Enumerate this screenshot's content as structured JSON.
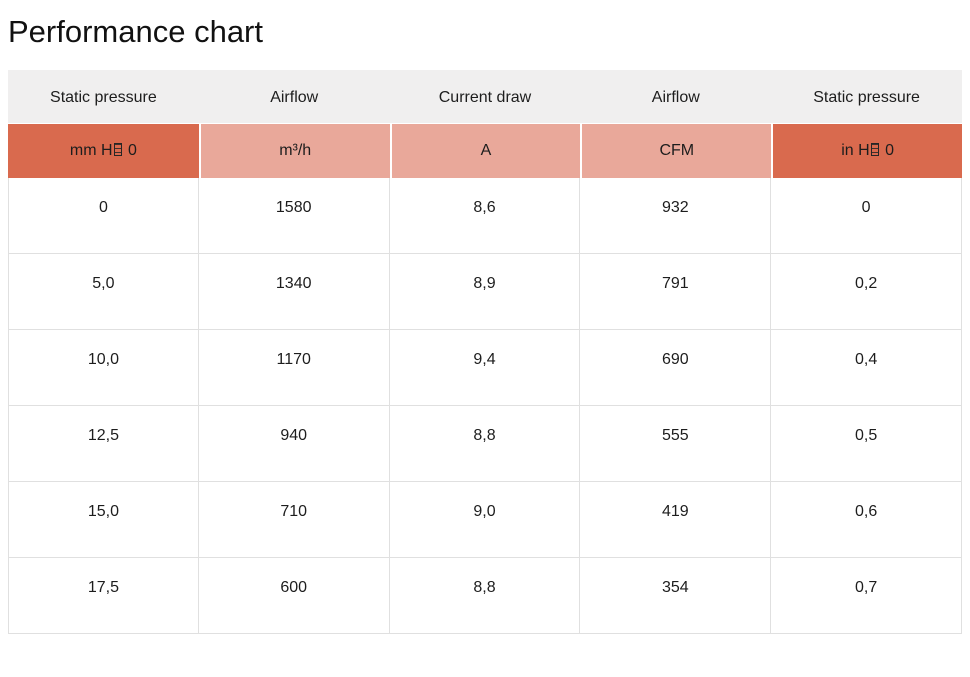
{
  "page": {
    "title": "Performance chart"
  },
  "colors": {
    "accent_dark": "#d96a4e",
    "accent_light": "#e9a89a",
    "header_bg": "#f0efef",
    "cell_border": "#e0e0e0",
    "text": "#1d1d1d"
  },
  "table": {
    "headers": [
      "Static pressure",
      "Airflow",
      "Current draw",
      "Airflow",
      "Static pressure"
    ],
    "units": [
      {
        "pre": "mm H",
        "post": " 0",
        "missing_glyph": true
      },
      {
        "label": "m³/h"
      },
      {
        "label": "A"
      },
      {
        "label": "CFM"
      },
      {
        "pre": "in H",
        "post": " 0",
        "missing_glyph": true
      }
    ],
    "rows": [
      [
        "0",
        "1580",
        "8,6",
        "932",
        "0"
      ],
      [
        "5,0",
        "1340",
        "8,9",
        "791",
        "0,2"
      ],
      [
        "10,0",
        "1170",
        "9,4",
        "690",
        "0,4"
      ],
      [
        "12,5",
        "940",
        "8,8",
        "555",
        "0,5"
      ],
      [
        "15,0",
        "710",
        "9,0",
        "419",
        "0,6"
      ],
      [
        "17,5",
        "600",
        "8,8",
        "354",
        "0,7"
      ]
    ]
  },
  "chart_data": {
    "type": "table",
    "title": "Performance chart",
    "columns": [
      {
        "header": "Static pressure",
        "unit_displayed": "mm H▯ 0"
      },
      {
        "header": "Airflow",
        "unit_displayed": "m³/h"
      },
      {
        "header": "Current draw",
        "unit_displayed": "A"
      },
      {
        "header": "Airflow",
        "unit_displayed": "CFM"
      },
      {
        "header": "Static pressure",
        "unit_displayed": "in H▯ 0"
      }
    ],
    "rows": [
      [
        0,
        1580,
        8.6,
        932,
        0
      ],
      [
        5.0,
        1340,
        8.9,
        791,
        0.2
      ],
      [
        10.0,
        1170,
        9.4,
        690,
        0.4
      ],
      [
        12.5,
        940,
        8.8,
        555,
        0.5
      ],
      [
        15.0,
        710,
        9.0,
        419,
        0.6
      ],
      [
        17.5,
        600,
        8.8,
        354,
        0.7
      ]
    ]
  }
}
